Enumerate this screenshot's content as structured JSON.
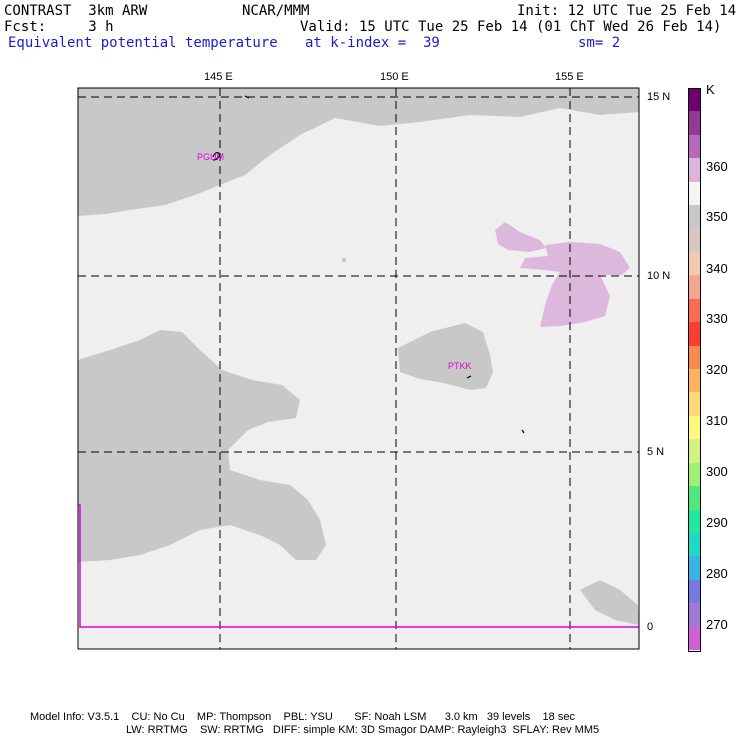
{
  "header": {
    "line1_left": "CONTRAST  3km ARW",
    "line1_mid": "NCAR/MMM",
    "line1_right": "Init: 12 UTC Tue 25 Feb 14",
    "line2_left": "Fcst:     3 h",
    "line2_right": "Valid: 15 UTC Tue 25 Feb 14 (01 ChT Wed 26 Feb 14)",
    "line3_field": "Equivalent potential temperature",
    "line3_level": "at k-index =  39",
    "line3_smooth": "sm= 2"
  },
  "map": {
    "lon_labels": [
      "145 E",
      "150 E",
      "155 E"
    ],
    "lat_labels": [
      "15 N",
      "10 N",
      "5 N",
      "0"
    ],
    "stations": [
      "PGUM",
      "PTKK"
    ],
    "colors": {
      "background": "#efefef",
      "land": "#c8c8c8",
      "high_theta": "#dcb8dc",
      "boundary": "#e000e0",
      "grid": "#000000"
    }
  },
  "colorbar": {
    "unit": "K",
    "labels": [
      "360",
      "350",
      "340",
      "330",
      "320",
      "310",
      "300",
      "290",
      "280",
      "270"
    ],
    "colors": [
      "#6f006f",
      "#933b93",
      "#b868b8",
      "#dbb4db",
      "#f4f4f4",
      "#c8c8c8",
      "#d6c8be",
      "#f2c8b0",
      "#f6a690",
      "#fa6c50",
      "#f84030",
      "#f88c50",
      "#fcb460",
      "#fcd878",
      "#fcf880",
      "#d4f080",
      "#a0f078",
      "#50e878",
      "#20e8a0",
      "#20d8c8",
      "#38b4e0",
      "#7878e0",
      "#a078d8",
      "#d060d8"
    ]
  },
  "footer": {
    "line1": "Model Info: V3.5.1    CU: No Cu    MP: Thompson    PBL: YSU       SF: Noah LSM      3.0 km   39 levels    18 sec",
    "line2": "LW: RRTMG    SW: RRTMG   DIFF: simple KM: 3D Smagor DAMP: Rayleigh3  SFLAY: Rev MM5"
  }
}
